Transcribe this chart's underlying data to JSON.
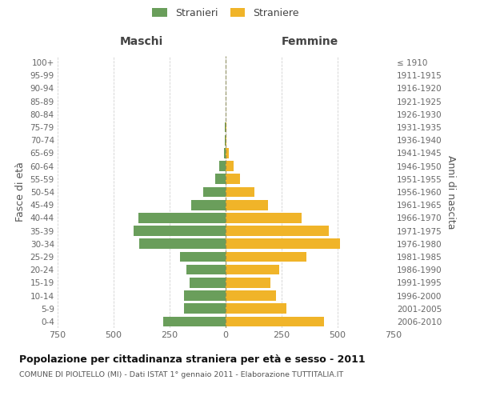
{
  "age_groups": [
    "0-4",
    "5-9",
    "10-14",
    "15-19",
    "20-24",
    "25-29",
    "30-34",
    "35-39",
    "40-44",
    "45-49",
    "50-54",
    "55-59",
    "60-64",
    "65-69",
    "70-74",
    "75-79",
    "80-84",
    "85-89",
    "90-94",
    "95-99",
    "100+"
  ],
  "birth_years": [
    "2006-2010",
    "2001-2005",
    "1996-2000",
    "1991-1995",
    "1986-1990",
    "1981-1985",
    "1976-1980",
    "1971-1975",
    "1966-1970",
    "1961-1965",
    "1956-1960",
    "1951-1955",
    "1946-1950",
    "1941-1945",
    "1936-1940",
    "1931-1935",
    "1926-1930",
    "1921-1925",
    "1916-1920",
    "1911-1915",
    "≤ 1910"
  ],
  "males": [
    280,
    185,
    185,
    160,
    175,
    205,
    385,
    410,
    390,
    155,
    100,
    45,
    30,
    8,
    5,
    5,
    0,
    0,
    0,
    0,
    0
  ],
  "females": [
    440,
    270,
    225,
    200,
    240,
    360,
    510,
    460,
    340,
    190,
    130,
    65,
    35,
    15,
    5,
    5,
    0,
    0,
    0,
    0,
    0
  ],
  "male_color": "#6a9e5b",
  "female_color": "#f0b429",
  "bg_color": "#ffffff",
  "grid_color": "#cccccc",
  "title": "Popolazione per cittadinanza straniera per età e sesso - 2011",
  "subtitle": "COMUNE DI PIOLTELLO (MI) - Dati ISTAT 1° gennaio 2011 - Elaborazione TUTTITALIA.IT",
  "left_header": "Maschi",
  "right_header": "Femmine",
  "left_ylabel": "Fasce di età",
  "right_ylabel": "Anni di nascita",
  "legend_male": "Stranieri",
  "legend_female": "Straniere",
  "xlim": 750,
  "xtick_vals": [
    -750,
    -500,
    -250,
    0,
    250,
    500,
    750
  ],
  "xtick_labels": [
    "750",
    "500",
    "250",
    "0",
    "250",
    "500",
    "750"
  ]
}
